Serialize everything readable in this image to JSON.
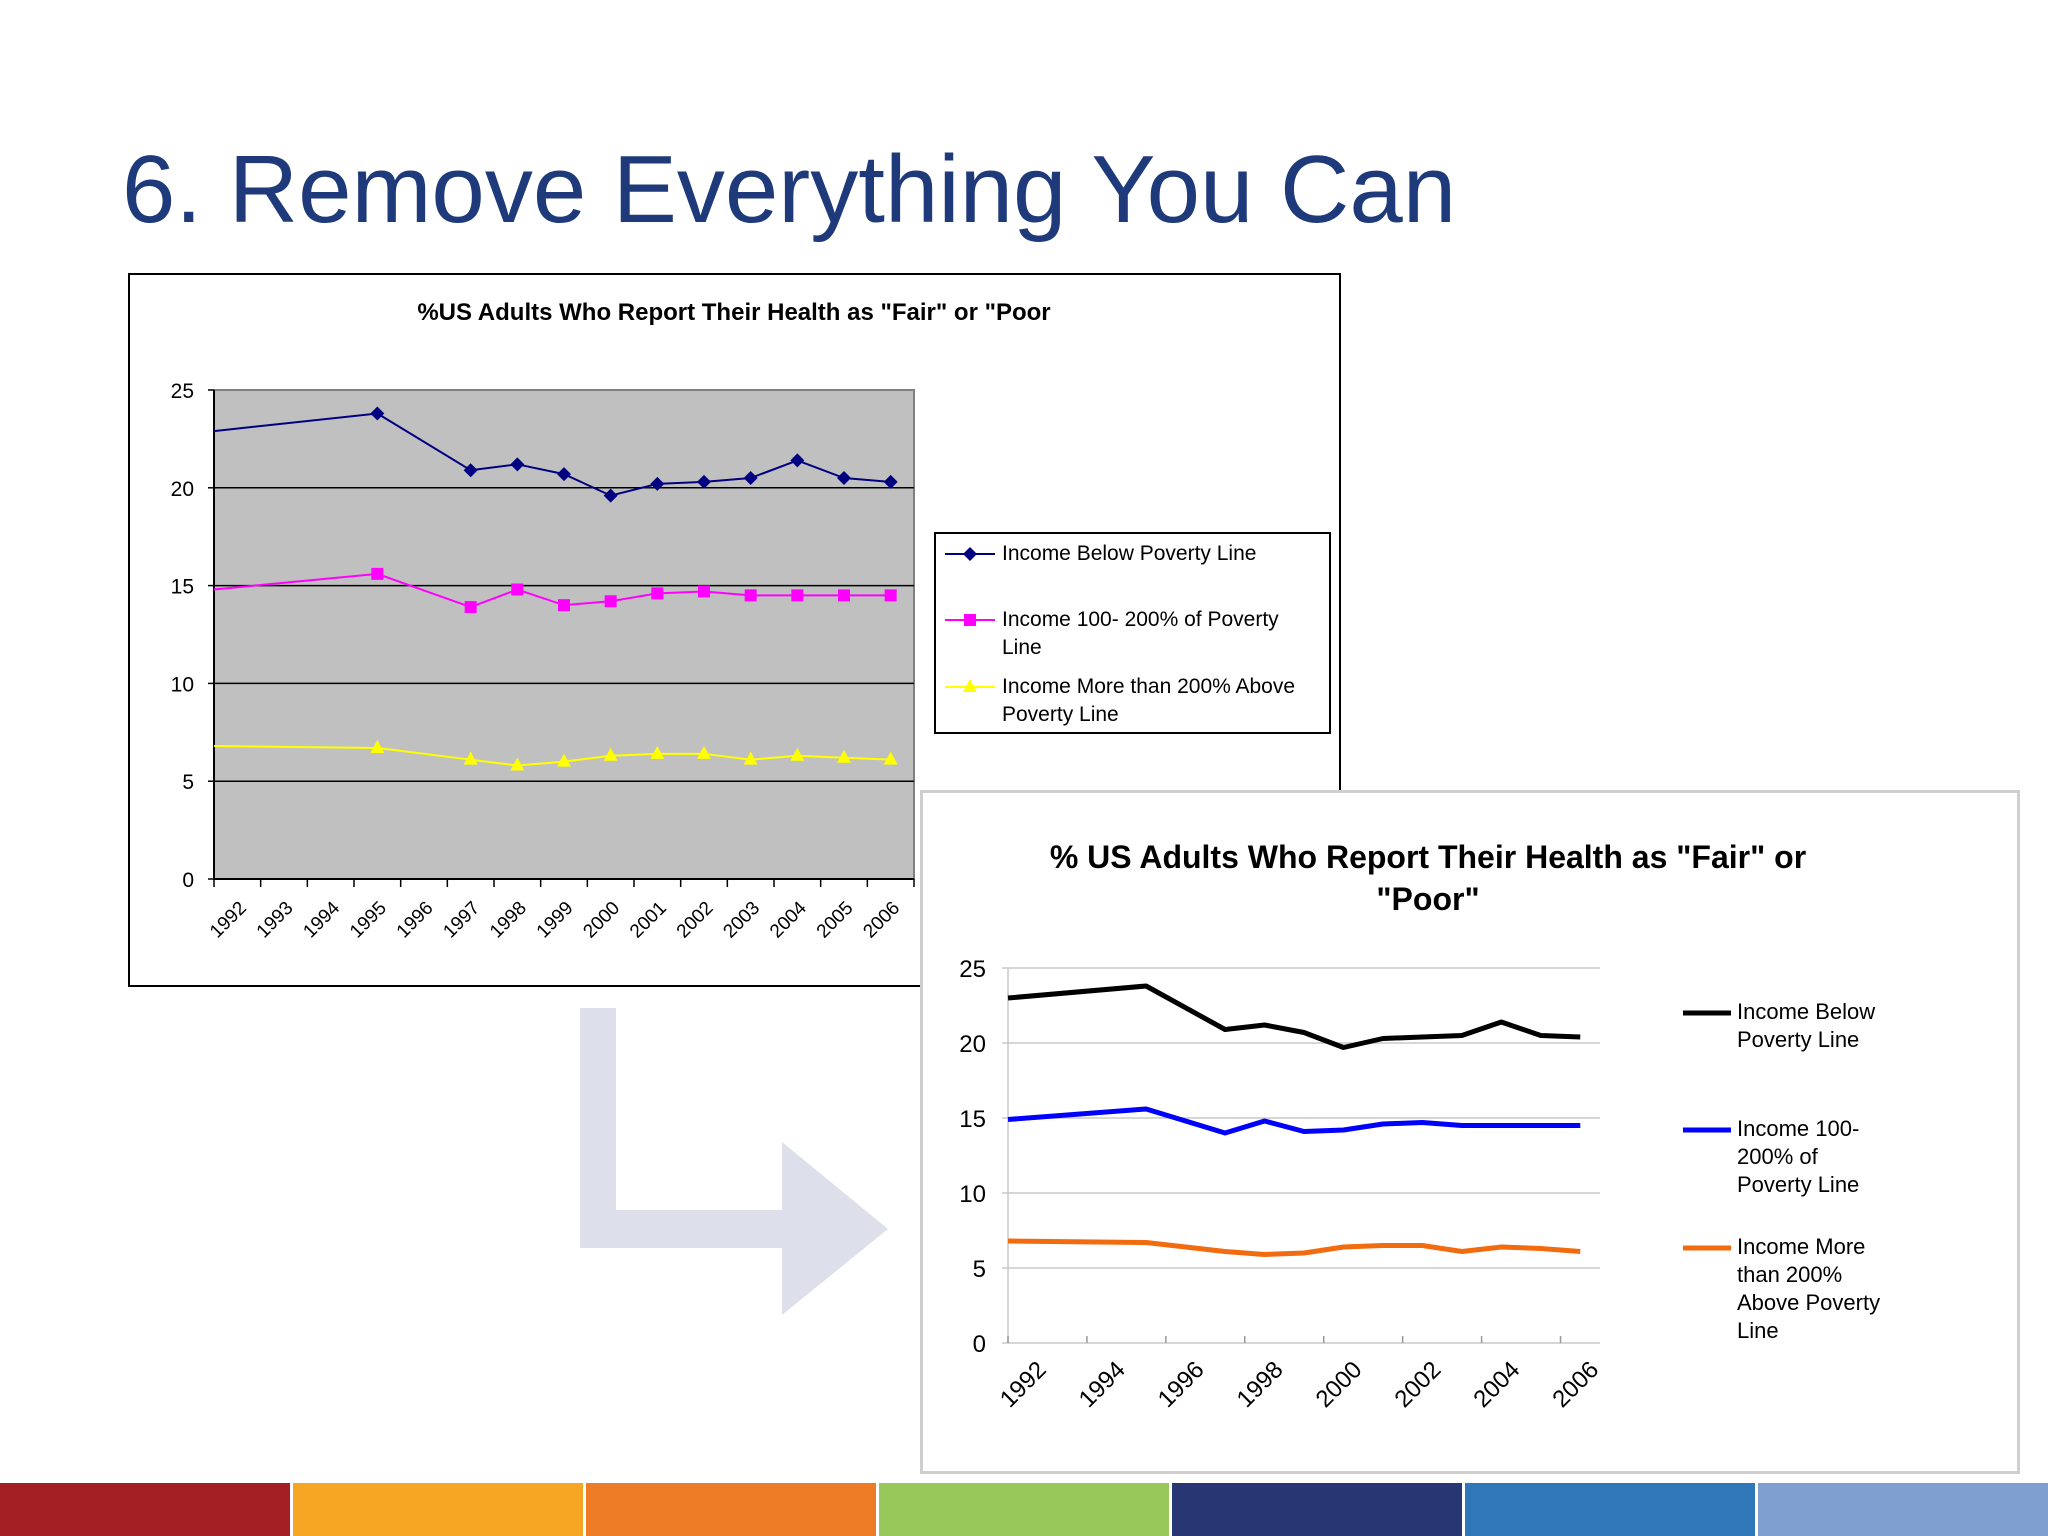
{
  "slide": {
    "title": "6. Remove Everything You Can",
    "footer_colors": [
      "#a31f24",
      "#f6a623",
      "#ee7b25",
      "#98c85a",
      "#283673",
      "#2f77b9",
      "#7f9fd1"
    ]
  },
  "chart_data": [
    {
      "id": "old",
      "type": "line",
      "title": "%US Adults Who Report  Their Health as \"Fair\" or \"Poor",
      "x_ticks": [
        "1992",
        "1993",
        "1994",
        "1995",
        "1996",
        "1997",
        "1998",
        "1999",
        "2000",
        "2001",
        "2002",
        "2003",
        "2004",
        "2005",
        "2006"
      ],
      "ylim": [
        0,
        25
      ],
      "y_ticks": [
        0,
        5,
        10,
        15,
        20,
        25
      ],
      "plot_background": "#c0c0c0",
      "grid": true,
      "legend_position": "right",
      "series": [
        {
          "name": "Income Below Poverty Line",
          "color": "#000080",
          "marker": "diamond",
          "points": [
            [
              1992.0,
              22.9
            ],
            [
              1995.5,
              23.8
            ],
            [
              1997.5,
              20.9
            ],
            [
              1998.5,
              21.2
            ],
            [
              1999.5,
              20.7
            ],
            [
              2000.5,
              19.6
            ],
            [
              2001.5,
              20.2
            ],
            [
              2002.5,
              20.3
            ],
            [
              2003.5,
              20.5
            ],
            [
              2004.5,
              21.4
            ],
            [
              2005.5,
              20.5
            ],
            [
              2006.5,
              20.3
            ]
          ]
        },
        {
          "name": "Income 100- 200% of Poverty Line",
          "color": "#ff00ff",
          "marker": "square",
          "points": [
            [
              1992.0,
              14.8
            ],
            [
              1995.5,
              15.6
            ],
            [
              1997.5,
              13.9
            ],
            [
              1998.5,
              14.8
            ],
            [
              1999.5,
              14.0
            ],
            [
              2000.5,
              14.2
            ],
            [
              2001.5,
              14.6
            ],
            [
              2002.5,
              14.7
            ],
            [
              2003.5,
              14.5
            ],
            [
              2004.5,
              14.5
            ],
            [
              2005.5,
              14.5
            ],
            [
              2006.5,
              14.5
            ]
          ]
        },
        {
          "name": "Income More than 200% Above Poverty Line",
          "color": "#ffff00",
          "marker": "triangle",
          "points": [
            [
              1992.0,
              6.8
            ],
            [
              1995.5,
              6.7
            ],
            [
              1997.5,
              6.1
            ],
            [
              1998.5,
              5.8
            ],
            [
              1999.5,
              6.0
            ],
            [
              2000.5,
              6.3
            ],
            [
              2001.5,
              6.4
            ],
            [
              2002.5,
              6.4
            ],
            [
              2003.5,
              6.1
            ],
            [
              2004.5,
              6.3
            ],
            [
              2005.5,
              6.2
            ],
            [
              2006.5,
              6.1
            ]
          ]
        }
      ]
    },
    {
      "id": "new",
      "type": "line",
      "title": "% US Adults Who Report Their Health as \"Fair\" or \"Poor\"",
      "x_ticks": [
        "1992",
        "1994",
        "1996",
        "1998",
        "2000",
        "2002",
        "2004",
        "2006"
      ],
      "ylim": [
        0,
        25
      ],
      "y_ticks": [
        0,
        5,
        10,
        15,
        20,
        25
      ],
      "grid": true,
      "legend_position": "right",
      "series": [
        {
          "name": "Income Below Poverty Line",
          "color": "#000000",
          "points": [
            [
              1992.0,
              23.0
            ],
            [
              1995.5,
              23.8
            ],
            [
              1997.5,
              20.9
            ],
            [
              1998.5,
              21.2
            ],
            [
              1999.5,
              20.7
            ],
            [
              2000.5,
              19.7
            ],
            [
              2001.5,
              20.3
            ],
            [
              2002.5,
              20.4
            ],
            [
              2003.5,
              20.5
            ],
            [
              2004.5,
              21.4
            ],
            [
              2005.5,
              20.5
            ],
            [
              2006.5,
              20.4
            ]
          ]
        },
        {
          "name": "Income 100-200% of Poverty Line",
          "color": "#0000ff",
          "points": [
            [
              1992.0,
              14.9
            ],
            [
              1995.5,
              15.6
            ],
            [
              1997.5,
              14.0
            ],
            [
              1998.5,
              14.8
            ],
            [
              1999.5,
              14.1
            ],
            [
              2000.5,
              14.2
            ],
            [
              2001.5,
              14.6
            ],
            [
              2002.5,
              14.7
            ],
            [
              2003.5,
              14.5
            ],
            [
              2004.5,
              14.5
            ],
            [
              2005.5,
              14.5
            ],
            [
              2006.5,
              14.5
            ]
          ]
        },
        {
          "name": "Income More than 200% Above Poverty Line",
          "color": "#f26b0f",
          "points": [
            [
              1992.0,
              6.8
            ],
            [
              1995.5,
              6.7
            ],
            [
              1997.5,
              6.1
            ],
            [
              1998.5,
              5.9
            ],
            [
              1999.5,
              6.0
            ],
            [
              2000.5,
              6.4
            ],
            [
              2001.5,
              6.5
            ],
            [
              2002.5,
              6.5
            ],
            [
              2003.5,
              6.1
            ],
            [
              2004.5,
              6.4
            ],
            [
              2005.5,
              6.3
            ],
            [
              2006.5,
              6.1
            ]
          ]
        }
      ]
    }
  ]
}
